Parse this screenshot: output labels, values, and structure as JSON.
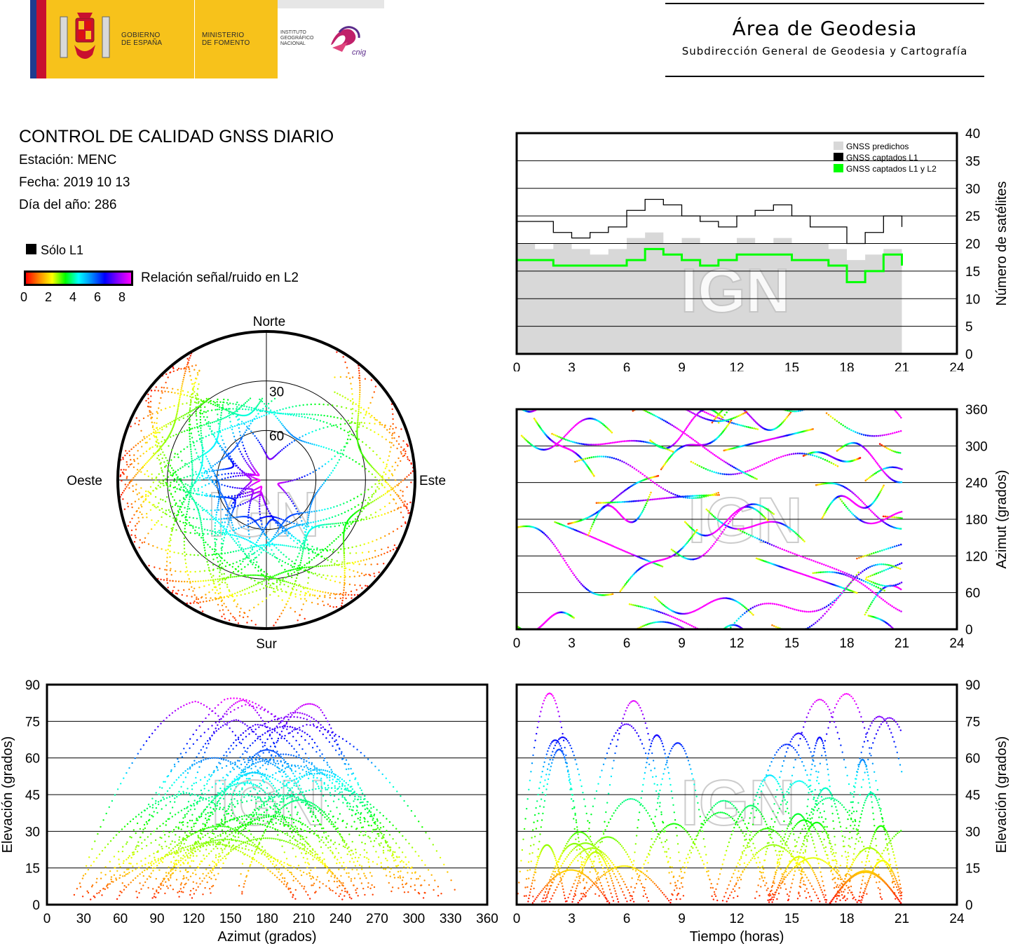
{
  "header": {
    "gov": [
      "GOBIERNO",
      "DE ESPAÑA"
    ],
    "ministry": [
      "MINISTERIO",
      "DE FOMENTO"
    ],
    "institute": [
      "INSTITUTO",
      "GEOGRÁFICO",
      "NACIONAL"
    ],
    "cnig": "cnig",
    "area_title": "Área de Geodesia",
    "area_subtitle": "Subdirección General de Geodesia y Cartografía"
  },
  "info": {
    "title": "CONTROL DE CALIDAD GNSS DIARIO",
    "station": "Estación: MENC",
    "date": "Fecha: 2019 10 13",
    "doy": "Día del año: 286",
    "only_l1": "Sólo L1",
    "snr_label": "Relación señal/ruido en L2",
    "snr_ticks": [
      "0",
      "2",
      "4",
      "6",
      "8"
    ]
  },
  "watermark": "IGN",
  "colors": {
    "predicted": "#d8d8d8",
    "l1": "#000000",
    "l1l2": "#00ff00",
    "snr_scale": [
      "#ff0000",
      "#ffff00",
      "#00ff00",
      "#00ffff",
      "#0000ff",
      "#ff00ff"
    ]
  },
  "chart_data": [
    {
      "type": "area",
      "ylabel": "Número de satélites",
      "xlim": [
        0,
        24
      ],
      "ylim": [
        0,
        40
      ],
      "xticks": [
        "0",
        "3",
        "6",
        "9",
        "12",
        "15",
        "18",
        "21",
        "24"
      ],
      "yticks": [
        "0",
        "5",
        "10",
        "15",
        "20",
        "25",
        "30",
        "35",
        "40"
      ],
      "grid": true,
      "legend_position": "top-right",
      "series": [
        {
          "name": "GNSS predichos",
          "x": [
            0,
            1,
            2,
            3,
            4,
            5,
            6,
            7,
            8,
            9,
            10,
            11,
            12,
            13,
            14,
            15,
            16,
            17,
            18,
            19,
            20,
            21
          ],
          "values": [
            20,
            19,
            20,
            19,
            18,
            19,
            21,
            22,
            20,
            21,
            20,
            20,
            21,
            20,
            21,
            20,
            20,
            19,
            17,
            18,
            19,
            18
          ]
        },
        {
          "name": "GNSS captados L1",
          "x": [
            0,
            1,
            2,
            3,
            4,
            5,
            6,
            7,
            8,
            9,
            10,
            11,
            12,
            13,
            14,
            15,
            16,
            17,
            18,
            19,
            20,
            21
          ],
          "values": [
            24,
            24,
            22,
            21,
            22,
            23,
            26,
            28,
            27,
            25,
            24,
            23,
            25,
            26,
            27,
            25,
            23,
            23,
            20,
            22,
            25,
            23
          ]
        },
        {
          "name": "GNSS captados L1 y L2",
          "x": [
            0,
            1,
            2,
            3,
            4,
            5,
            6,
            7,
            8,
            9,
            10,
            11,
            12,
            13,
            14,
            15,
            16,
            17,
            18,
            19,
            20,
            21
          ],
          "values": [
            17,
            17,
            16,
            16,
            16,
            16,
            17,
            19,
            18,
            17,
            16,
            17,
            18,
            18,
            18,
            17,
            17,
            16,
            13,
            15,
            18,
            16
          ]
        }
      ]
    },
    {
      "type": "scatter",
      "ylabel": "Azimut (grados)",
      "xlim": [
        0,
        24
      ],
      "ylim": [
        0,
        360
      ],
      "xticks": [
        "0",
        "3",
        "6",
        "9",
        "12",
        "15",
        "18",
        "21",
        "24"
      ],
      "yticks": [
        "0",
        "60",
        "120",
        "180",
        "240",
        "300",
        "360"
      ],
      "grid": true
    },
    {
      "type": "scatter",
      "xlabel": "Azimut (grados)",
      "ylabel": "Elevación (grados)",
      "xlim": [
        0,
        360
      ],
      "ylim": [
        0,
        90
      ],
      "xticks": [
        "0",
        "30",
        "60",
        "90",
        "120",
        "150",
        "180",
        "210",
        "240",
        "270",
        "300",
        "330",
        "360"
      ],
      "yticks": [
        "0",
        "15",
        "30",
        "45",
        "60",
        "75",
        "90"
      ],
      "grid": true
    },
    {
      "type": "scatter",
      "xlabel": "Tiempo (horas)",
      "ylabel": "Elevación (grados)",
      "xlim": [
        0,
        24
      ],
      "ylim": [
        0,
        90
      ],
      "xticks": [
        "0",
        "3",
        "6",
        "9",
        "12",
        "15",
        "18",
        "21",
        "24"
      ],
      "yticks": [
        "0",
        "15",
        "30",
        "45",
        "60",
        "75",
        "90"
      ],
      "grid": true
    },
    {
      "type": "scatter",
      "polar": true,
      "labels": {
        "north": "Norte",
        "south": "Sur",
        "east": "Este",
        "west": "Oeste"
      },
      "rings": [
        "30",
        "60"
      ]
    }
  ]
}
